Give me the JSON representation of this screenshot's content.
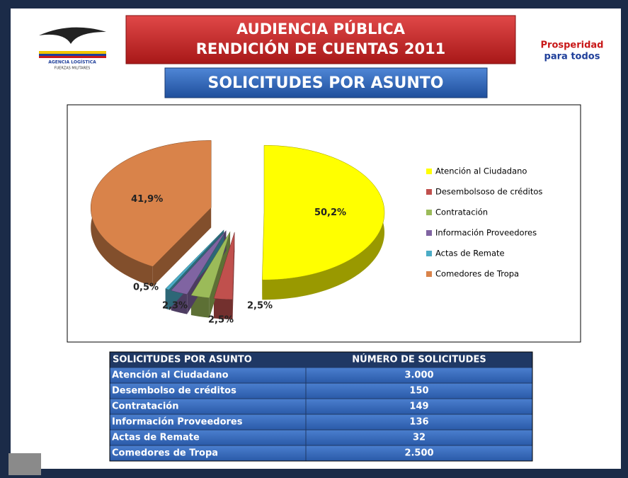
{
  "header": {
    "title_line1": "AUDIENCIA PÚBLICA",
    "title_line2": "RENDICIÓN DE CUENTAS 2011",
    "subtitle": "SOLICITUDES POR ASUNTO",
    "logo_left_1": "AGENCIA LOGÍSTICA",
    "logo_left_2": "FUERZAS MILITARES",
    "logo_right_1": "Prosperidad",
    "logo_right_2": "para todos"
  },
  "chart_data": {
    "type": "pie",
    "categories": [
      "Atención al Ciudadano",
      "Desembolsoso de créditos",
      "Contratación",
      "Información Proveedores",
      "Actas de Remate",
      "Comedores de Tropa"
    ],
    "values": [
      50.2,
      2.5,
      2.5,
      2.3,
      0.5,
      41.9
    ],
    "value_labels": [
      "50,2%",
      "2,5%",
      "2,5%",
      "2,3%",
      "0,5%",
      "41,9%"
    ],
    "colors": [
      "#ffff00",
      "#c0504d",
      "#9bbb59",
      "#8064a2",
      "#4bacc6",
      "#d9834a"
    ],
    "legend": "right"
  },
  "table": {
    "header": [
      "SOLICITUDES POR ASUNTO",
      "NÚMERO DE SOLICITUDES"
    ],
    "rows": [
      [
        "Atención al Ciudadano",
        "3.000"
      ],
      [
        "Desembolso de créditos",
        "150"
      ],
      [
        "Contratación",
        "149"
      ],
      [
        "Información Proveedores",
        "136"
      ],
      [
        "Actas  de Remate",
        "32"
      ],
      [
        "Comedores de Tropa",
        "2.500"
      ]
    ]
  }
}
